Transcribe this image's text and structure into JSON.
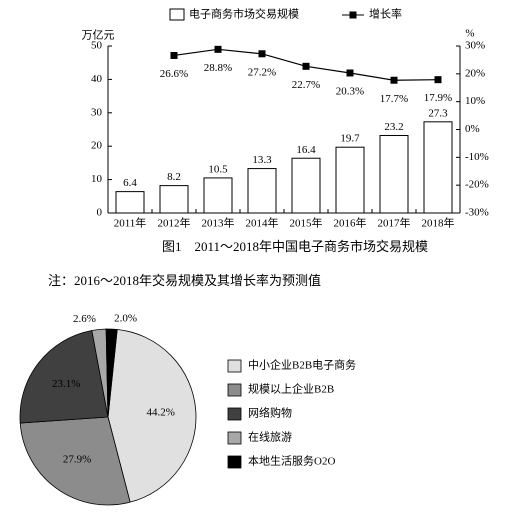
{
  "chart_data": [
    {
      "type": "combo",
      "categories": [
        "2011年",
        "2012年",
        "2013年",
        "2014年",
        "2015年",
        "2016年",
        "2017年",
        "2018年"
      ],
      "y_label": "万亿元",
      "y2_label": "%",
      "series": [
        {
          "name": "电子商务市场交易规模",
          "type": "bar",
          "color": "#ffffff",
          "values": [
            6.4,
            8.2,
            10.5,
            13.3,
            16.4,
            19.7,
            23.2,
            27.3
          ]
        },
        {
          "name": "增长率",
          "type": "line",
          "axis": "y2",
          "color": "#000000",
          "values": [
            null,
            26.6,
            28.8,
            27.2,
            22.7,
            20.3,
            17.7,
            17.9
          ],
          "value_labels": [
            null,
            "26.6%",
            "28.8%",
            "27.2%",
            "22.7%",
            "20.3%",
            "17.7%",
            "17.9%"
          ]
        }
      ],
      "ylim": [
        0,
        50
      ],
      "yticks": [
        0,
        10,
        20,
        30,
        40,
        50
      ],
      "y2lim": [
        -30,
        30
      ],
      "y2ticks": [
        {
          "value": -30,
          "label": "-30%"
        },
        {
          "value": -20,
          "label": "-20%"
        },
        {
          "value": -10,
          "label": "-10%"
        },
        {
          "value": 0,
          "label": "0%"
        },
        {
          "value": 10,
          "label": "10%"
        },
        {
          "value": 20,
          "label": "20%"
        },
        {
          "value": 30,
          "label": "30%"
        }
      ],
      "grid": false
    },
    {
      "type": "pie",
      "categories": [
        "中小企业B2B电子商务",
        "规模以上企业B2B",
        "网络购物",
        "在线旅游",
        "本地生活服务O2O"
      ],
      "values": [
        44.2,
        27.9,
        23.1,
        2.6,
        2.0
      ],
      "value_labels": [
        "44.2%",
        "27.9%",
        "23.1%",
        "2.6%",
        "2.0%"
      ],
      "colors": [
        "#e0e0e0",
        "#8c8c8c",
        "#404040",
        "#a8a8a8",
        "#000000"
      ]
    }
  ],
  "figure_caption": "图1　2011～2018年中国电子商务市场交易规模",
  "note": "注：2016～2018年交易规模及其增长率为预测值"
}
